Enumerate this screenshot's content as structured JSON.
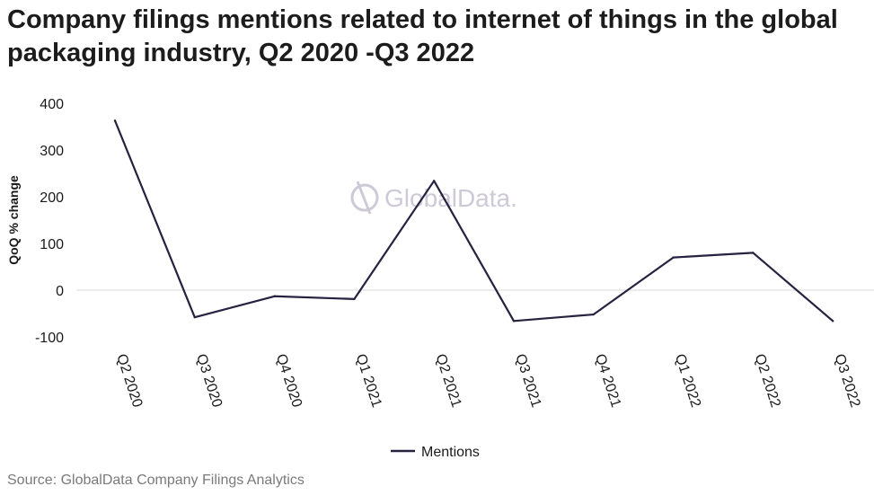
{
  "title": "Company filings mentions related to internet of things in the global packaging industry, Q2 2020 -Q3 2022",
  "source": "Source: GlobalData Company Filings Analytics",
  "watermark": "GlobalData.",
  "colors": {
    "line": "#26223f",
    "zero_line": "#d9d9d9",
    "watermark": "#c9c4d3"
  },
  "chart_data": {
    "type": "line",
    "title": "Company filings mentions related to internet of things in the global packaging industry, Q2 2020 -Q3 2022",
    "xlabel": "",
    "ylabel": "QoQ % change",
    "categories": [
      "Q2 2020",
      "Q3 2020",
      "Q4 2020",
      "Q1 2021",
      "Q2 2021",
      "Q3 2021",
      "Q4 2021",
      "Q1 2022",
      "Q2 2022",
      "Q3 2022"
    ],
    "series": [
      {
        "name": "Mentions",
        "values": [
          363,
          -58,
          -13,
          -19,
          234,
          -66,
          -52,
          70,
          80,
          -66
        ]
      }
    ],
    "ylim": [
      -100,
      400
    ],
    "yticks": [
      400,
      300,
      200,
      100,
      0,
      -100
    ],
    "grid": false,
    "zero_line": true,
    "legend": "bottom-center"
  }
}
